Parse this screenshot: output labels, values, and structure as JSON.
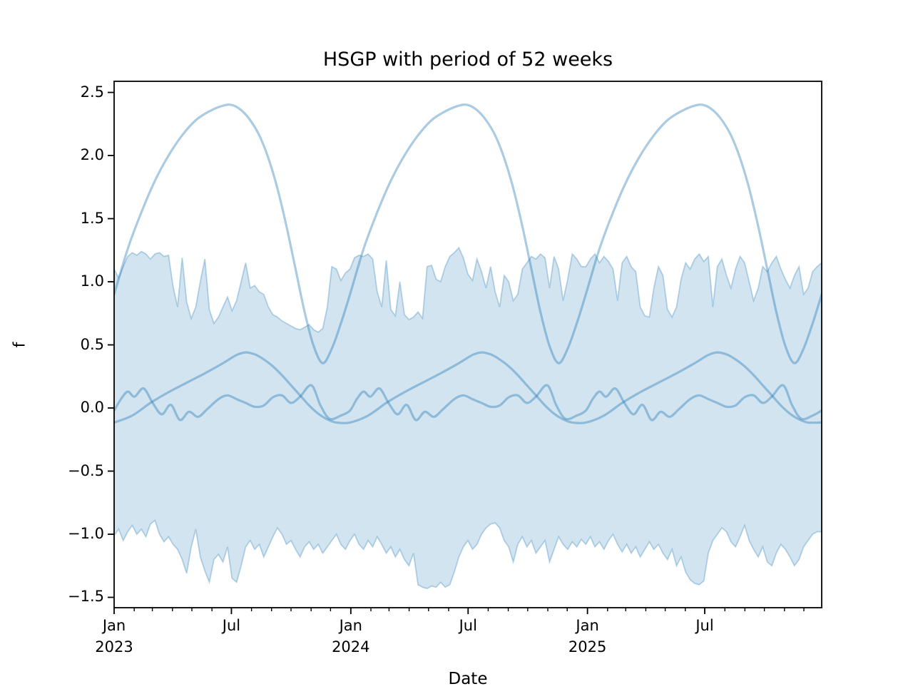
{
  "chart_data": {
    "type": "line",
    "title": "HSGP with period of 52 weeks",
    "xlabel": "Date",
    "ylabel": "f",
    "x_unit": "weeks since Jan 2023",
    "xlim_weeks": [
      0,
      156
    ],
    "ylim": [
      -1.582,
      2.588
    ],
    "grid": false,
    "legend": "none",
    "colors": {
      "line": "#1f77b4",
      "line_opacity": 0.38,
      "band_fill_opacity": 0.2,
      "band_edge_opacity": 0.3,
      "axis": "#000000"
    },
    "y_ticks": [
      {
        "value": 2.5,
        "label": "2.5"
      },
      {
        "value": 2.0,
        "label": "2.0"
      },
      {
        "value": 1.5,
        "label": "1.5"
      },
      {
        "value": 1.0,
        "label": "1.0"
      },
      {
        "value": 0.5,
        "label": "0.5"
      },
      {
        "value": 0.0,
        "label": "0.0"
      },
      {
        "value": -0.5,
        "label": "−0.5"
      },
      {
        "value": -1.0,
        "label": "−1.0"
      },
      {
        "value": -1.5,
        "label": "−1.5"
      }
    ],
    "x_ticks_major": [
      {
        "week": 0,
        "label": "Jan",
        "year": "2023"
      },
      {
        "week": 25.86,
        "label": "Jul",
        "year": ""
      },
      {
        "week": 52.18,
        "label": "Jan",
        "year": "2024"
      },
      {
        "week": 78.04,
        "label": "Jul",
        "year": ""
      },
      {
        "week": 104.36,
        "label": "Jan",
        "year": "2025"
      },
      {
        "week": 130.21,
        "label": "Jul",
        "year": ""
      }
    ],
    "x_ticks_minor_weeks": [
      4.43,
      8.43,
      12.86,
      17.14,
      21.57,
      30.29,
      34.71,
      39.0,
      43.43,
      47.71,
      56.61,
      60.61,
      65.04,
      69.32,
      73.75,
      82.47,
      86.89,
      91.18,
      95.61,
      99.89,
      108.79,
      112.79,
      117.22,
      121.5,
      125.93,
      134.65,
      139.07,
      143.36,
      147.79,
      152.07
    ],
    "band": {
      "name": "hdi-band",
      "x_step_weeks": 1,
      "upper": [
        1.1,
        1.03,
        1.12,
        1.2,
        1.23,
        1.21,
        1.24,
        1.22,
        1.18,
        1.22,
        1.23,
        1.2,
        1.21,
        0.96,
        0.8,
        1.19,
        0.84,
        0.71,
        0.8,
        1.0,
        1.18,
        0.78,
        0.67,
        0.72,
        0.8,
        0.88,
        0.77,
        0.85,
        1.0,
        1.15,
        0.95,
        0.97,
        0.92,
        0.9,
        0.8,
        0.74,
        0.72,
        0.69,
        0.67,
        0.65,
        0.63,
        0.62,
        0.64,
        0.66,
        0.62,
        0.6,
        0.63,
        0.8,
        1.12,
        1.1,
        1.01,
        1.07,
        1.1,
        1.19,
        1.21,
        1.2,
        1.22,
        1.18,
        0.92,
        0.8,
        1.17,
        0.78,
        0.73,
        1.0,
        0.74,
        0.7,
        0.72,
        0.76,
        0.71,
        1.12,
        1.13,
        1.02,
        1.0,
        1.12,
        1.2,
        1.23,
        1.27,
        1.19,
        1.06,
        1.01,
        1.18,
        1.08,
        0.95,
        1.12,
        0.92,
        0.8,
        1.05,
        1.0,
        0.85,
        0.9,
        1.1,
        1.15,
        1.2,
        1.18,
        1.22,
        1.19,
        0.95,
        1.2,
        1.1,
        0.85,
        1.02,
        1.22,
        1.18,
        1.12,
        1.12,
        1.18,
        1.22,
        1.15,
        1.2,
        1.16,
        1.1,
        0.85,
        1.15,
        1.2,
        1.12,
        1.08,
        0.8,
        0.73,
        0.72,
        0.95,
        1.12,
        1.05,
        0.78,
        0.72,
        0.8,
        1.02,
        1.15,
        1.1,
        1.18,
        1.22,
        1.16,
        1.2,
        0.8,
        1.12,
        1.18,
        1.05,
        0.95,
        1.1,
        1.2,
        1.15,
        1.0,
        0.85,
        0.95,
        1.12,
        1.08,
        1.15,
        1.2,
        1.1,
        1.02,
        0.95,
        1.05,
        1.12,
        0.9,
        0.95,
        1.08,
        1.12,
        1.15
      ],
      "lower": [
        -1.01,
        -0.96,
        -1.05,
        -0.98,
        -0.93,
        -1.0,
        -0.96,
        -1.02,
        -0.92,
        -0.89,
        -1.0,
        -1.06,
        -1.02,
        -1.08,
        -1.12,
        -1.2,
        -1.31,
        -1.1,
        -0.96,
        -1.18,
        -1.29,
        -1.38,
        -1.2,
        -1.16,
        -1.22,
        -1.1,
        -1.35,
        -1.38,
        -1.25,
        -1.1,
        -1.05,
        -1.12,
        -1.08,
        -1.18,
        -1.1,
        -1.02,
        -0.95,
        -1.0,
        -1.08,
        -1.05,
        -1.12,
        -1.18,
        -1.1,
        -1.06,
        -1.12,
        -1.08,
        -1.15,
        -1.1,
        -1.05,
        -1.0,
        -1.08,
        -1.12,
        -1.05,
        -1.0,
        -1.08,
        -1.12,
        -1.05,
        -1.1,
        -1.02,
        -1.08,
        -1.15,
        -1.1,
        -1.18,
        -1.12,
        -1.2,
        -1.25,
        -1.15,
        -1.4,
        -1.42,
        -1.43,
        -1.41,
        -1.42,
        -1.38,
        -1.42,
        -1.4,
        -1.3,
        -1.18,
        -1.1,
        -1.05,
        -1.12,
        -1.08,
        -1.0,
        -0.95,
        -0.92,
        -0.91,
        -0.95,
        -1.05,
        -1.1,
        -1.22,
        -1.08,
        -1.02,
        -1.1,
        -1.05,
        -1.15,
        -1.1,
        -1.05,
        -1.22,
        -1.12,
        -1.02,
        -1.08,
        -1.12,
        -1.06,
        -1.1,
        -1.04,
        -1.08,
        -1.02,
        -1.1,
        -1.06,
        -1.12,
        -1.05,
        -1.0,
        -1.08,
        -1.14,
        -1.08,
        -1.15,
        -1.1,
        -1.18,
        -1.12,
        -1.06,
        -1.12,
        -1.08,
        -1.15,
        -1.2,
        -1.12,
        -1.25,
        -1.18,
        -1.3,
        -1.36,
        -1.39,
        -1.4,
        -1.37,
        -1.15,
        -1.05,
        -1.0,
        -0.95,
        -0.98,
        -1.06,
        -1.1,
        -1.02,
        -0.93,
        -1.05,
        -1.12,
        -1.18,
        -1.1,
        -1.22,
        -1.25,
        -1.15,
        -1.08,
        -1.12,
        -1.18,
        -1.25,
        -1.2,
        -1.1,
        -1.05,
        -1.0,
        -0.98,
        -0.98
      ]
    },
    "series": [
      {
        "name": "sample-curve-1",
        "period_weeks": 52,
        "periods": 3,
        "anchors": [
          [
            0,
            0.9
          ],
          [
            3,
            1.26
          ],
          [
            6,
            1.55
          ],
          [
            9,
            1.8
          ],
          [
            12,
            2.0
          ],
          [
            15,
            2.16
          ],
          [
            18,
            2.28
          ],
          [
            21,
            2.35
          ],
          [
            24,
            2.395
          ],
          [
            26,
            2.4
          ],
          [
            28,
            2.36
          ],
          [
            30,
            2.28
          ],
          [
            32,
            2.16
          ],
          [
            34,
            1.98
          ],
          [
            36,
            1.74
          ],
          [
            38,
            1.44
          ],
          [
            40,
            1.1
          ],
          [
            42,
            0.76
          ],
          [
            44,
            0.49
          ],
          [
            46,
            0.355
          ],
          [
            48,
            0.47
          ],
          [
            50,
            0.67
          ],
          [
            52,
            0.9
          ]
        ]
      },
      {
        "name": "sample-curve-2",
        "period_weeks": 52,
        "periods": 3,
        "anchors": [
          [
            0,
            -0.115
          ],
          [
            4,
            -0.06
          ],
          [
            8,
            0.04
          ],
          [
            12,
            0.125
          ],
          [
            16,
            0.2
          ],
          [
            20,
            0.275
          ],
          [
            24,
            0.355
          ],
          [
            27,
            0.42
          ],
          [
            29,
            0.44
          ],
          [
            31,
            0.425
          ],
          [
            33,
            0.385
          ],
          [
            35,
            0.33
          ],
          [
            37,
            0.26
          ],
          [
            39,
            0.18
          ],
          [
            41,
            0.1
          ],
          [
            43,
            0.02
          ],
          [
            45,
            -0.045
          ],
          [
            47,
            -0.09
          ],
          [
            49,
            -0.115
          ],
          [
            52,
            -0.115
          ]
        ]
      },
      {
        "name": "sample-curve-3",
        "period_weeks": 52,
        "periods": 3,
        "anchors": [
          [
            0,
            -0.02
          ],
          [
            1.5,
            0.07
          ],
          [
            3,
            0.13
          ],
          [
            4.5,
            0.09
          ],
          [
            6.5,
            0.155
          ],
          [
            8.5,
            0.04
          ],
          [
            10.5,
            -0.05
          ],
          [
            12.5,
            0.025
          ],
          [
            14.5,
            -0.095
          ],
          [
            16.5,
            -0.03
          ],
          [
            18.5,
            -0.07
          ],
          [
            20.5,
            -0.01
          ],
          [
            23,
            0.07
          ],
          [
            25,
            0.1
          ],
          [
            27,
            0.07
          ],
          [
            29,
            0.04
          ],
          [
            31,
            0.01
          ],
          [
            33,
            0.02
          ],
          [
            35,
            0.085
          ],
          [
            37,
            0.1
          ],
          [
            39,
            0.04
          ],
          [
            41,
            0.09
          ],
          [
            43.5,
            0.18
          ],
          [
            45.5,
            0.02
          ],
          [
            47.5,
            -0.085
          ],
          [
            50,
            -0.06
          ],
          [
            52,
            -0.02
          ]
        ]
      }
    ]
  }
}
